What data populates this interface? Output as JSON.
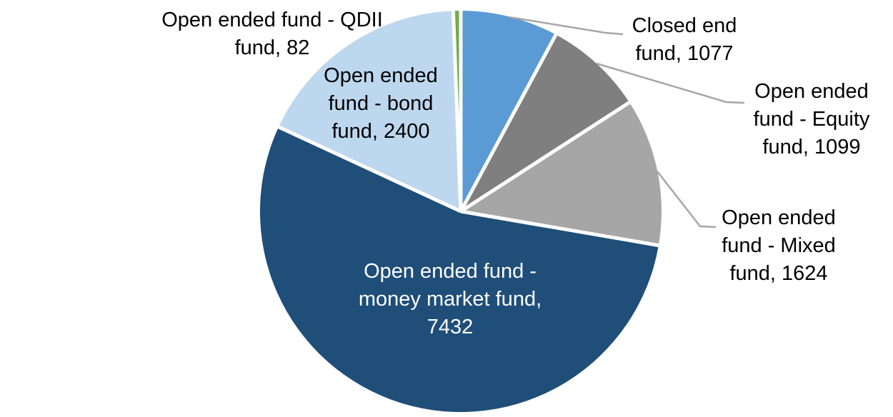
{
  "chart_data": {
    "type": "pie",
    "title": "",
    "total": 13714,
    "start_angle_deg": 0,
    "direction": "clockwise",
    "legend": "none",
    "background_color": "#ffffff",
    "leader_line_color": "#a6a6a6",
    "separator_color": "#ffffff",
    "slices": [
      {
        "key": "closed-end",
        "label": "Closed end fund",
        "value": 1077,
        "color": "#5b9bd5",
        "label_text": "Closed end\nfund, 1077",
        "label_placement": "outside",
        "label_color": "#000000"
      },
      {
        "key": "equity",
        "label": "Open ended fund - Equity fund",
        "value": 1099,
        "color": "#7f7f7f",
        "label_text": "Open ended\nfund - Equity\nfund, 1099",
        "label_placement": "outside",
        "label_color": "#000000"
      },
      {
        "key": "mixed",
        "label": "Open ended fund - Mixed fund",
        "value": 1624,
        "color": "#a6a6a6",
        "label_text": "Open ended\nfund - Mixed\nfund, 1624",
        "label_placement": "outside",
        "label_color": "#000000"
      },
      {
        "key": "money-market",
        "label": "Open ended fund - money market fund",
        "value": 7432,
        "color": "#1f4e79",
        "label_text": "Open ended fund -\nmoney market fund,\n7432",
        "label_placement": "inside",
        "label_color": "#ffffff"
      },
      {
        "key": "bond",
        "label": "Open ended fund - bond fund",
        "value": 2400,
        "color": "#bdd7ee",
        "label_text": "Open ended\nfund - bond\nfund, 2400",
        "label_placement": "inside",
        "label_color": "#000000"
      },
      {
        "key": "qdii",
        "label": "Open ended fund - QDII fund",
        "value": 82,
        "color": "#70ad47",
        "label_text": "Open ended fund - QDII\nfund, 82",
        "label_placement": "outside",
        "label_color": "#000000"
      }
    ]
  }
}
